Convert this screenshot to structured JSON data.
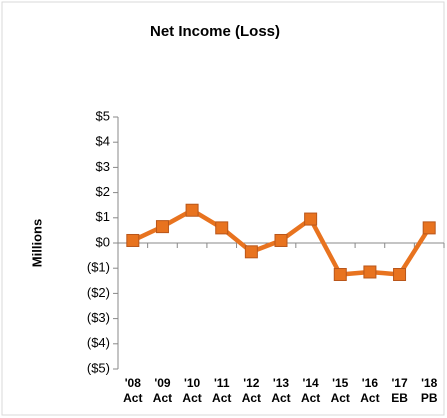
{
  "chart_data": {
    "type": "line",
    "title": "Net Income (Loss)",
    "y_label": "Millions",
    "categories": [
      [
        "'08",
        "Act"
      ],
      [
        "'09",
        "Act"
      ],
      [
        "'10",
        "Act"
      ],
      [
        "'11",
        "Act"
      ],
      [
        "'12",
        "Act"
      ],
      [
        "'13",
        "Act"
      ],
      [
        "'14",
        "Act"
      ],
      [
        "'15",
        "Act"
      ],
      [
        "'16",
        "Act"
      ],
      [
        "'17",
        "EB"
      ],
      [
        "'18",
        "PB"
      ]
    ],
    "series": [
      {
        "name": "Net Income (Loss)",
        "color": "#e8731f",
        "values": [
          0.1,
          0.65,
          1.3,
          0.6,
          -0.35,
          0.1,
          0.95,
          -1.25,
          -1.15,
          -1.25,
          0.6
        ]
      }
    ],
    "ylim": [
      -5,
      5
    ],
    "yticks": [
      {
        "value": 5,
        "label": "$5"
      },
      {
        "value": 4,
        "label": "$4"
      },
      {
        "value": 3,
        "label": "$3"
      },
      {
        "value": 2,
        "label": "$2"
      },
      {
        "value": 1,
        "label": "$1"
      },
      {
        "value": 0,
        "label": "$0"
      },
      {
        "value": -1,
        "label": "($1)"
      },
      {
        "value": -2,
        "label": "($2)"
      },
      {
        "value": -3,
        "label": "($3)"
      },
      {
        "value": -4,
        "label": "($4)"
      },
      {
        "value": -5,
        "label": "($5)"
      }
    ],
    "grid": false
  }
}
